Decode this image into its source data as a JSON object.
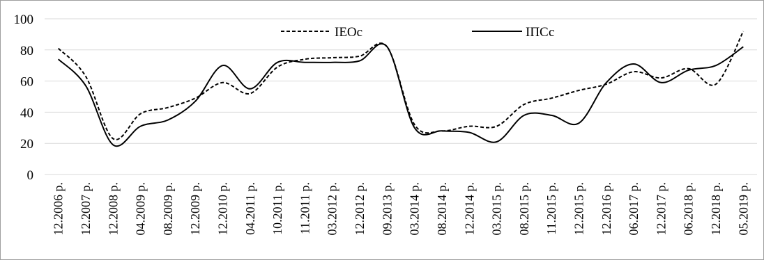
{
  "chart_data": {
    "type": "line",
    "x": [
      "12.2006 р.",
      "12.2007 р.",
      "12.2008 р.",
      "04.2009 р.",
      "08.2009 р.",
      "12.2009 р.",
      "12.2010 р.",
      "04.2011 р.",
      "10.2011 р.",
      "11.2011 р.",
      "03.2012 р.",
      "12.2012 р.",
      "09.2013 р.",
      "03.2014 р.",
      "08.2014 р.",
      "12.2014 р.",
      "03.2015 р.",
      "08.2015 р.",
      "11.2015 р.",
      "12.2015 р.",
      "12.2016 р.",
      "06.2017 р.",
      "12.2017 р.",
      "06.2018 р.",
      "12.2018 р.",
      "05.2019 р."
    ],
    "series": [
      {
        "name": "ІЕОс",
        "style": "dashed",
        "color": "#000000",
        "values": [
          81,
          63,
          23,
          39,
          43,
          49,
          59,
          52,
          69,
          74,
          75,
          76,
          82,
          32,
          28,
          31,
          31,
          45,
          49,
          54,
          58,
          66,
          62,
          68,
          58,
          92
        ]
      },
      {
        "name": "ІПСс",
        "style": "solid",
        "color": "#000000",
        "values": [
          74,
          57,
          19,
          31,
          35,
          47,
          70,
          55,
          72,
          72,
          72,
          73,
          82,
          30,
          28,
          27,
          21,
          38,
          38,
          33,
          59,
          71,
          59,
          67,
          70,
          82
        ]
      }
    ],
    "ylim": [
      0,
      100
    ],
    "yticks": [
      0,
      20,
      40,
      60,
      80,
      100
    ],
    "grid": true,
    "legend_position": "top"
  }
}
